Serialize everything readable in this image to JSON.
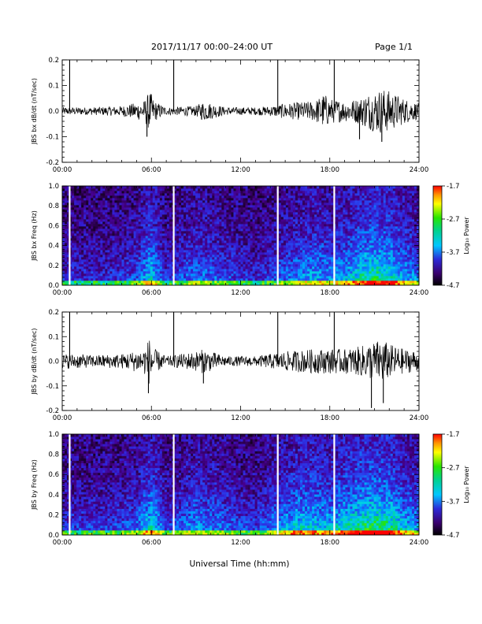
{
  "header": {
    "title": "2017/11/17  00:00–24:00 UT",
    "page": "Page 1/1"
  },
  "colorbar_label": "Log₁₀ Power",
  "chart_data": [
    {
      "type": "line",
      "id": "bx_dbdt",
      "ylabel": "JBS bx dB/dt (nT/sec)",
      "ylim": [
        -0.2,
        0.2
      ],
      "yticks": [
        -0.2,
        -0.1,
        0.0,
        0.1,
        0.2
      ],
      "ytick_labels": [
        "-0.2",
        "-0.1",
        "0.0",
        "0.1",
        "0.2"
      ],
      "xlim": [
        0,
        24
      ],
      "xticks": [
        0,
        6,
        12,
        18,
        24
      ],
      "xtick_labels": [
        "00:00",
        "06:00",
        "12:00",
        "18:00",
        "24:00"
      ],
      "envelope": {
        "hours": [
          0,
          2,
          4,
          5.5,
          5.9,
          6.2,
          7,
          9,
          9.5,
          11,
          13,
          14,
          15,
          16,
          17,
          17.6,
          18,
          19,
          20,
          20.5,
          21,
          21.5,
          22,
          23,
          24
        ],
        "amplitude": [
          0.015,
          0.015,
          0.02,
          0.04,
          0.08,
          0.04,
          0.015,
          0.02,
          0.04,
          0.015,
          0.015,
          0.02,
          0.03,
          0.035,
          0.04,
          0.07,
          0.05,
          0.04,
          0.05,
          0.07,
          0.08,
          0.09,
          0.08,
          0.05,
          0.03
        ]
      },
      "spikes": [
        {
          "hour": 0.5,
          "value": 0.2
        },
        {
          "hour": 7.5,
          "value": 0.2
        },
        {
          "hour": 14.5,
          "value": 0.2
        },
        {
          "hour": 18.3,
          "value": 0.2
        },
        {
          "hour": 5.7,
          "value": -0.1
        },
        {
          "hour": 20.0,
          "value": -0.11
        },
        {
          "hour": 21.5,
          "value": -0.12
        }
      ]
    },
    {
      "type": "heatmap",
      "id": "bx_freq",
      "ylabel": "JBS bx Freq (Hz)",
      "ylim": [
        0.0,
        1.0
      ],
      "yticks": [
        0.0,
        0.2,
        0.4,
        0.6,
        0.8,
        1.0
      ],
      "ytick_labels": [
        "0.0",
        "0.2",
        "0.4",
        "0.6",
        "0.8",
        "1.0"
      ],
      "xlim": [
        0,
        24
      ],
      "xticks": [
        0,
        6,
        12,
        18,
        24
      ],
      "xtick_labels": [
        "00:00",
        "06:00",
        "12:00",
        "18:00",
        "24:00"
      ],
      "colorbar": {
        "min": -4.7,
        "max": -1.7,
        "ticks": [
          -1.7,
          -2.7,
          -3.7,
          -4.7
        ],
        "tick_labels": [
          "-1.7",
          "-2.7",
          "-3.7",
          "-4.7"
        ]
      },
      "data_gaps_hours": [
        0.5,
        7.5,
        14.5,
        18.3
      ],
      "activity": {
        "hours": [
          0,
          3,
          5,
          6,
          7,
          9,
          11,
          13,
          15,
          16,
          17,
          18,
          19,
          20,
          21,
          22,
          23,
          24
        ],
        "level": [
          0.3,
          0.3,
          0.4,
          0.7,
          0.3,
          0.5,
          0.4,
          0.3,
          0.45,
          0.55,
          0.6,
          0.55,
          0.6,
          0.75,
          0.85,
          0.8,
          0.6,
          0.5
        ]
      }
    },
    {
      "type": "line",
      "id": "by_dbdt",
      "ylabel": "JBS by dB/dt (nT/sec)",
      "ylim": [
        -0.2,
        0.2
      ],
      "yticks": [
        -0.2,
        -0.1,
        0.0,
        0.1,
        0.2
      ],
      "ytick_labels": [
        "-0.2",
        "-0.1",
        "0.0",
        "0.1",
        "0.2"
      ],
      "xlim": [
        0,
        24
      ],
      "xticks": [
        0,
        6,
        12,
        18,
        24
      ],
      "xtick_labels": [
        "00:00",
        "06:00",
        "12:00",
        "18:00",
        "24:00"
      ],
      "envelope": {
        "hours": [
          0,
          1,
          2,
          4,
          5.5,
          5.9,
          6.2,
          7,
          9,
          9.5,
          11,
          13,
          14,
          15,
          16,
          17,
          18,
          19,
          20,
          21,
          21.5,
          22,
          23,
          24
        ],
        "amplitude": [
          0.03,
          0.03,
          0.025,
          0.03,
          0.05,
          0.1,
          0.05,
          0.02,
          0.04,
          0.05,
          0.02,
          0.02,
          0.03,
          0.04,
          0.045,
          0.05,
          0.05,
          0.05,
          0.06,
          0.08,
          0.09,
          0.07,
          0.05,
          0.04
        ]
      },
      "spikes": [
        {
          "hour": 0.5,
          "value": 0.2
        },
        {
          "hour": 7.5,
          "value": 0.2
        },
        {
          "hour": 14.5,
          "value": 0.2
        },
        {
          "hour": 18.3,
          "value": 0.2
        },
        {
          "hour": 5.8,
          "value": -0.13
        },
        {
          "hour": 20.8,
          "value": -0.19
        },
        {
          "hour": 21.6,
          "value": -0.17
        },
        {
          "hour": 9.5,
          "value": -0.09
        }
      ]
    },
    {
      "type": "heatmap",
      "id": "by_freq",
      "ylabel": "JBS by Freq (Hz)",
      "ylim": [
        0.0,
        1.0
      ],
      "yticks": [
        0.0,
        0.2,
        0.4,
        0.6,
        0.8,
        1.0
      ],
      "ytick_labels": [
        "0.0",
        "0.2",
        "0.4",
        "0.6",
        "0.8",
        "1.0"
      ],
      "xlim": [
        0,
        24
      ],
      "xticks": [
        0,
        6,
        12,
        18,
        24
      ],
      "xtick_labels": [
        "00:00",
        "06:00",
        "12:00",
        "18:00",
        "24:00"
      ],
      "colorbar": {
        "min": -4.7,
        "max": -1.7,
        "ticks": [
          -1.7,
          -2.7,
          -3.7,
          -4.7
        ],
        "tick_labels": [
          "-1.7",
          "-2.7",
          "-3.7",
          "-4.7"
        ]
      },
      "data_gaps_hours": [
        0.5,
        7.5,
        14.5,
        18.3
      ],
      "activity": {
        "hours": [
          0,
          3,
          5,
          6,
          7,
          9,
          11,
          13,
          15,
          16,
          17,
          18,
          19,
          20,
          21,
          22,
          23,
          24
        ],
        "level": [
          0.35,
          0.35,
          0.45,
          0.75,
          0.35,
          0.55,
          0.45,
          0.35,
          0.6,
          0.7,
          0.7,
          0.65,
          0.75,
          0.85,
          0.9,
          0.85,
          0.65,
          0.55
        ]
      }
    }
  ],
  "xlabel": "Universal Time (hh:mm)"
}
